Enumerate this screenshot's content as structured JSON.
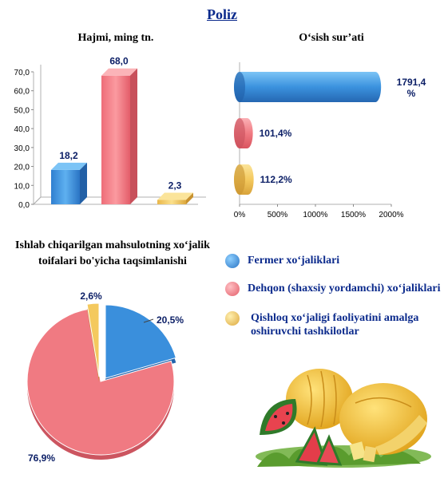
{
  "page_title": "Poliz",
  "bar_title": "Hajmi, ming tn.",
  "hbar_title": "O‘sish sur’ati",
  "pie_title": "Ishlab chiqarilgan mahsulotning xo‘jalik toifalari bo'yicha taqsimlanishi",
  "colors": {
    "blue": "#3a8fdc",
    "red": "#f07a82",
    "yellow": "#f4c95e",
    "title": "#0b2a8c"
  },
  "chart_data": [
    {
      "type": "bar",
      "title": "Hajmi, ming tn.",
      "categories": [
        "Fermer xo‘jaliklari",
        "Dehqon (shaxsiy yordamchi) xo‘jaliklari",
        "Qishloq xo‘jaligi faoliyatini amalga oshiruvchi tashkilotlar"
      ],
      "values": [
        18.2,
        68.0,
        2.3
      ],
      "value_labels": [
        "18,2",
        "68,0",
        "2,3"
      ],
      "ylim": [
        0,
        70
      ],
      "yticks": [
        "0,0",
        "10,0",
        "20,0",
        "30,0",
        "40,0",
        "50,0",
        "60,0",
        "70,0"
      ]
    },
    {
      "type": "bar",
      "orientation": "horizontal",
      "title": "O‘sish sur’ati",
      "categories": [
        "Fermer xo‘jaliklari",
        "Dehqon (shaxsiy yordamchi) xo‘jaliklari",
        "Qishloq xo‘jaligi faoliyatini amalga oshiruvchi tashkilotlar"
      ],
      "values": [
        1791.4,
        101.4,
        112.2
      ],
      "value_labels": [
        "1791,4 %",
        "101,4%",
        "112,2%"
      ],
      "xlim": [
        0,
        2000
      ],
      "xticks": [
        "0%",
        "500%",
        "1000%",
        "1500%",
        "2000%"
      ]
    },
    {
      "type": "pie",
      "title": "Ishlab chiqarilgan mahsulotning xo‘jalik toifalari bo'yicha taqsimlanishi",
      "labels": [
        "Fermer xo‘jaliklari",
        "Dehqon (shaxsiy yordamchi) xo‘jaliklari",
        "Qishloq xo‘jaligi faoliyatini amalga oshiruvchi tashkilotlar"
      ],
      "values": [
        20.5,
        76.9,
        2.6
      ],
      "value_labels": [
        "20,5%",
        "76,9%",
        "2,6%"
      ],
      "legend_position": "right"
    }
  ],
  "legend": [
    {
      "label": "Fermer xo‘jaliklari"
    },
    {
      "label": "Dehqon (shaxsiy yordamchi) xo‘jaliklari"
    },
    {
      "label": "Qishloq xo‘jaligi faoliyatini amalga oshiruvchi tashkilotlar"
    }
  ]
}
